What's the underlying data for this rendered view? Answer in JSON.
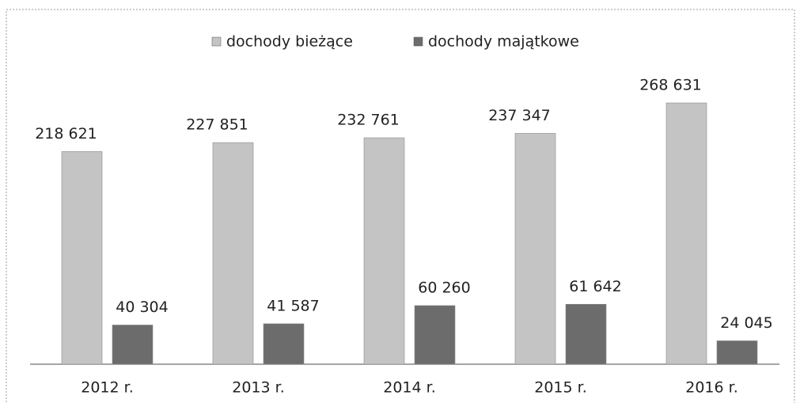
{
  "chart_data": {
    "type": "bar",
    "categories": [
      "2012 r.",
      "2013 r.",
      "2014 r.",
      "2015 r.",
      "2016 r."
    ],
    "series": [
      {
        "name": "dochody bieżące",
        "color": "#c4c4c4",
        "values": [
          218621,
          227851,
          232761,
          237347,
          268631
        ],
        "value_labels": [
          "218 621",
          "227 851",
          "232 761",
          "237 347",
          "268 631"
        ]
      },
      {
        "name": "dochody majątkowe",
        "color": "#6c6c6c",
        "values": [
          40304,
          41587,
          60260,
          61642,
          24045
        ],
        "value_labels": [
          "40 304",
          "41 587",
          "60 260",
          "61 642",
          "24 045"
        ]
      }
    ],
    "legend": "top"
  }
}
